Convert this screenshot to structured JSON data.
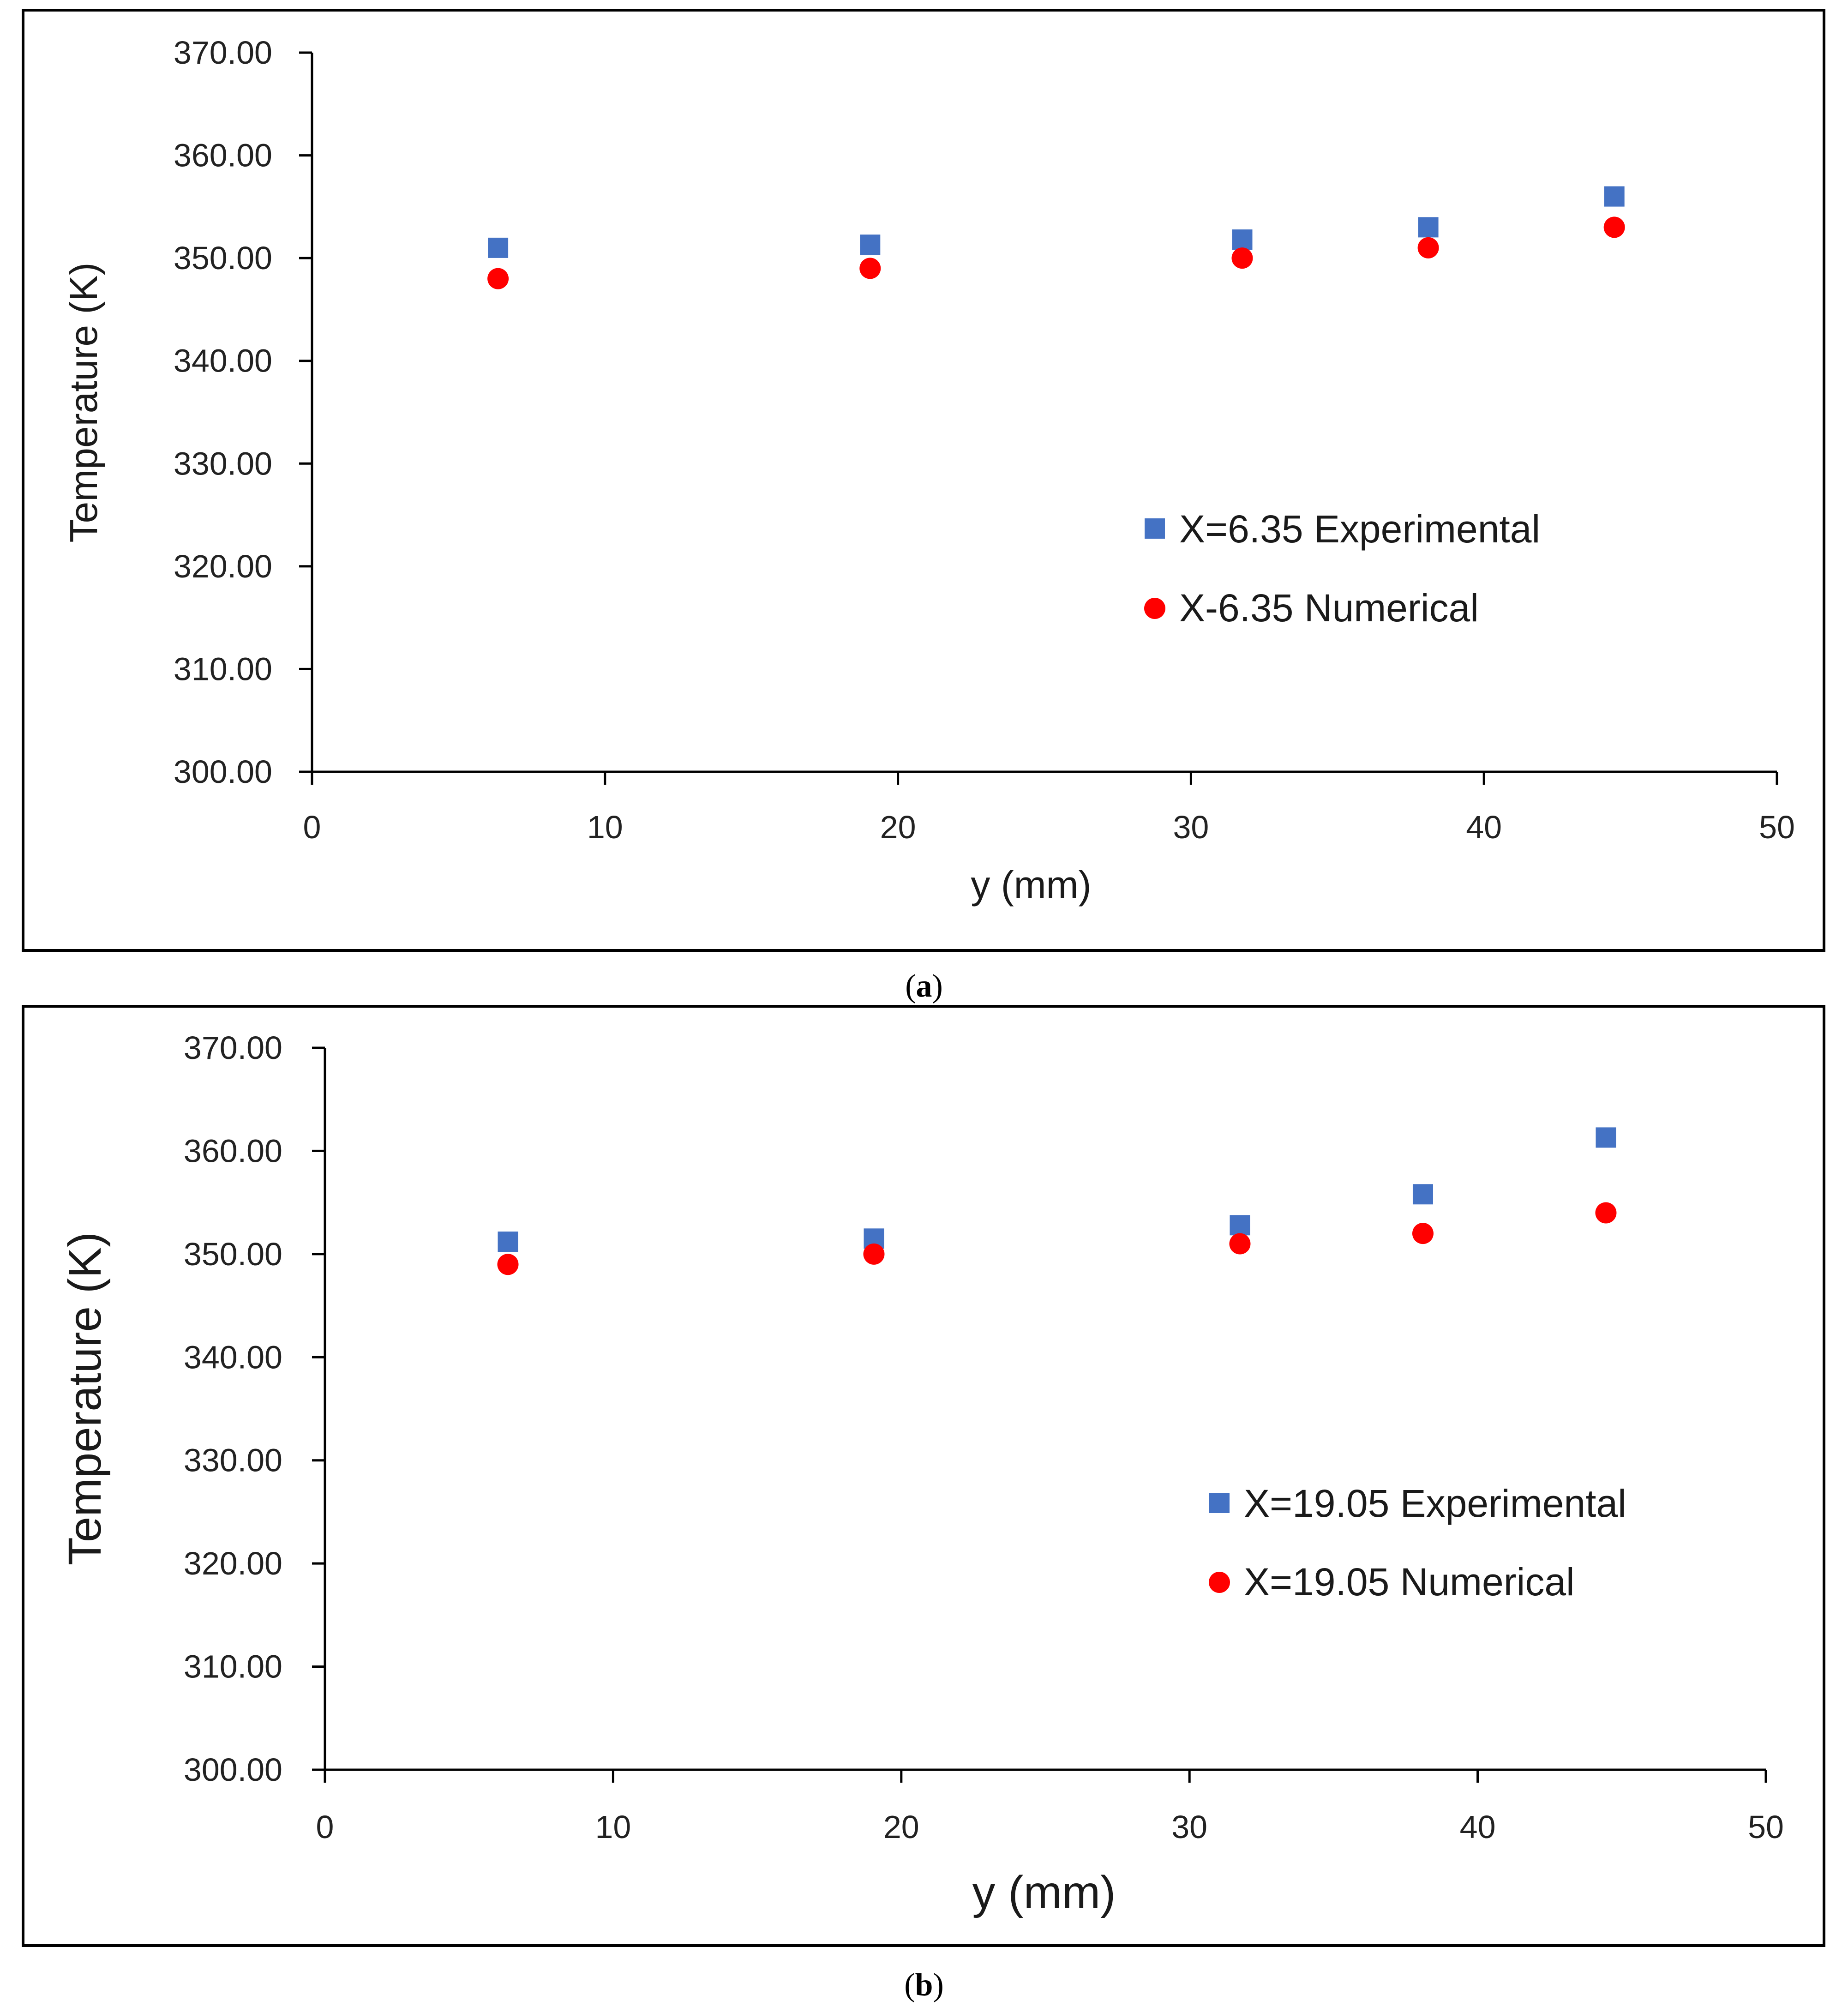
{
  "chart_data": [
    {
      "type": "scatter",
      "panel": "a",
      "caption_open": "(",
      "caption_letter": "a",
      "caption_close": ")",
      "xlabel": "y (mm)",
      "ylabel": "Temperature (K)",
      "xlim": [
        0,
        50
      ],
      "ylim": [
        300,
        370
      ],
      "xticks": [
        "0",
        "10",
        "20",
        "30",
        "40",
        "50"
      ],
      "yticks": [
        "300.00",
        "310.00",
        "320.00",
        "330.00",
        "340.00",
        "350.00",
        "360.00",
        "370.00"
      ],
      "grid": false,
      "legend_position": "center-right",
      "series": [
        {
          "name": "X=6.35 Experimental",
          "marker": "square",
          "color": "#4472C4",
          "x": [
            6.35,
            19.05,
            31.75,
            38.1,
            44.45
          ],
          "y": [
            351.0,
            351.3,
            351.8,
            353.0,
            356.0
          ]
        },
        {
          "name": "X-6.35 Numerical",
          "marker": "circle",
          "color": "#FF0000",
          "x": [
            6.35,
            19.05,
            31.75,
            38.1,
            44.45
          ],
          "y": [
            348.0,
            349.0,
            350.0,
            351.0,
            353.0
          ]
        }
      ]
    },
    {
      "type": "scatter",
      "panel": "b",
      "caption_open": "(",
      "caption_letter": "b",
      "caption_close": ")",
      "xlabel": "y (mm)",
      "ylabel": "Temperature (K)",
      "xlim": [
        0,
        50
      ],
      "ylim": [
        300,
        370
      ],
      "xticks": [
        "0",
        "10",
        "20",
        "30",
        "40",
        "50"
      ],
      "yticks": [
        "300.00",
        "310.00",
        "320.00",
        "330.00",
        "340.00",
        "350.00",
        "360.00",
        "370.00"
      ],
      "grid": false,
      "legend_position": "center-right",
      "series": [
        {
          "name": "X=19.05 Experimental",
          "marker": "square",
          "color": "#4472C4",
          "x": [
            6.35,
            19.05,
            31.75,
            38.1,
            44.45
          ],
          "y": [
            351.2,
            351.5,
            352.8,
            355.8,
            361.3
          ]
        },
        {
          "name": "X=19.05 Numerical",
          "marker": "circle",
          "color": "#FF0000",
          "x": [
            6.35,
            19.05,
            31.75,
            38.1,
            44.45
          ],
          "y": [
            349.0,
            350.0,
            351.0,
            352.0,
            354.0
          ]
        }
      ]
    }
  ]
}
